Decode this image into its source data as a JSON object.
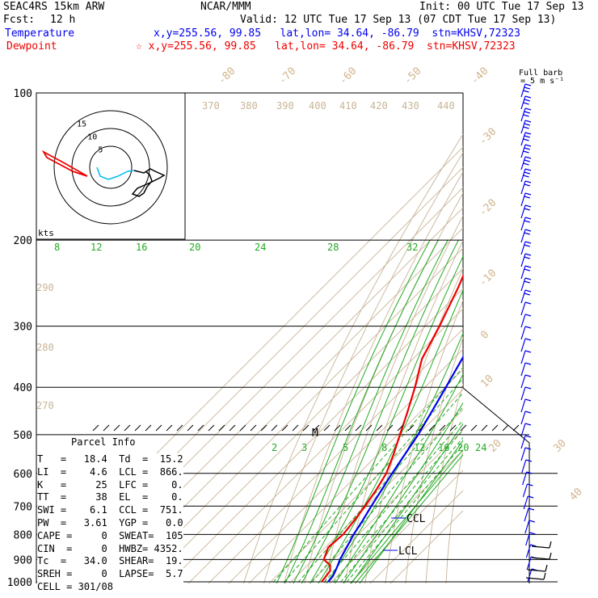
{
  "header": {
    "model": "SEAC4RS 15km ARW",
    "org": "NCAR/MMM",
    "init": "Init: 00 UTC Tue 17 Sep 13",
    "fcst_label": "Fcst:",
    "fcst_value": "12 h",
    "valid": "Valid: 12 UTC Tue 17 Sep 13 (07 CDT Tue 17 Sep 13)",
    "temp_name": "Temperature",
    "temp_info": "x,y=255.56, 99.85   lat,lon= 34.64, -86.79  stn=KHSV,72323",
    "dew_name": "Dewpoint",
    "dew_info": "☆ x,y=255.56, 99.85   lat,lon= 34.64, -86.79  stn=KHSV,72323",
    "barb_legend_1": "Full barb",
    "barb_legend_2": "= 5 m s⁻¹"
  },
  "colors": {
    "temperature": "#0000ee",
    "dewpoint": "#ee0000",
    "isotherm": "#c8b496",
    "mixing_ratio": "#22aa22",
    "hodograph": "#00bbee"
  },
  "chart_data": {
    "type": "line",
    "title": "",
    "pressure_levels": [
      "100",
      "200",
      "300",
      "400",
      "500",
      "600",
      "700",
      "800",
      "900",
      "1000"
    ],
    "dry_adiabat_labels": [
      "370",
      "380",
      "390",
      "400",
      "410",
      "420",
      "430",
      "440",
      "290",
      "280",
      "270"
    ],
    "isotherm_labels": [
      "-80",
      "-70",
      "-60",
      "-50",
      "-40",
      "-30",
      "-20",
      "-10",
      "0",
      "10",
      "20",
      "30",
      "40"
    ],
    "mixing_ratio_labels_upper": [
      "8",
      "12",
      "16",
      "20",
      "24",
      "28",
      "32"
    ],
    "mixing_ratio_labels_lower": [
      "2",
      "3",
      "5",
      "8",
      "12",
      "16",
      "20",
      "24"
    ],
    "hodograph_rings": [
      "5",
      "10",
      "15"
    ],
    "hodograph_unit": "kts",
    "markers": {
      "ccl": "CCL",
      "lcl": "LCL",
      "m": "M"
    },
    "series": [
      {
        "name": "Temperature",
        "color": "#0000ee",
        "points": [
          [
            1000,
            18.4
          ],
          [
            975,
            18.0
          ],
          [
            950,
            16.6
          ],
          [
            925,
            15.0
          ],
          [
            900,
            13.2
          ],
          [
            850,
            10.5
          ],
          [
            800,
            7.6
          ],
          [
            750,
            5.2
          ],
          [
            700,
            2.3
          ],
          [
            650,
            -0.5
          ],
          [
            600,
            -3.6
          ],
          [
            550,
            -6.6
          ],
          [
            500,
            -9.9
          ],
          [
            450,
            -14.4
          ],
          [
            400,
            -19.6
          ],
          [
            350,
            -25.6
          ],
          [
            300,
            -32.6
          ],
          [
            250,
            -41.2
          ],
          [
            200,
            -52.5
          ],
          [
            175,
            -58.7
          ],
          [
            150,
            -64.9
          ],
          [
            125,
            -70.8
          ],
          [
            100,
            -76.8
          ]
        ]
      },
      {
        "name": "Dewpoint",
        "color": "#ee0000",
        "points": [
          [
            1000,
            15.2
          ],
          [
            975,
            14.6
          ],
          [
            950,
            14.0
          ],
          [
            925,
            11.2
          ],
          [
            900,
            5.2
          ],
          [
            850,
            1.4
          ],
          [
            800,
            2.4
          ],
          [
            750,
            1.0
          ],
          [
            700,
            -0.8
          ],
          [
            650,
            -3.2
          ],
          [
            600,
            -6.5
          ],
          [
            550,
            -12.1
          ],
          [
            500,
            -18.9
          ],
          [
            450,
            -26.3
          ],
          [
            400,
            -34.9
          ],
          [
            350,
            -45.5
          ],
          [
            300,
            -53.0
          ],
          [
            250,
            -62.9
          ],
          [
            200,
            -76.3
          ],
          [
            175,
            -79.8
          ],
          [
            150,
            -78.0
          ],
          [
            125,
            -78.2
          ],
          [
            100,
            -85.5
          ]
        ]
      }
    ]
  },
  "parcel": {
    "title": "Parcel Info",
    "rows": [
      "T   =   18.4  Td  =  15.2",
      "LI  =    4.6  LCL =  866.",
      "K   =     25  LFC =    0.",
      "TT  =     38  EL  =    0.",
      "SWI =    6.1  CCL =  751.",
      "PW  =   3.61  YGP =   0.0",
      "CAPE =     0  SWEAT=  105",
      "CIN  =     0  HWBZ= 4352.",
      "Tc  =   34.0  SHEAR=  19.",
      "SREH =     0  LAPSE=  5.7",
      "CELL = 301/08"
    ]
  }
}
